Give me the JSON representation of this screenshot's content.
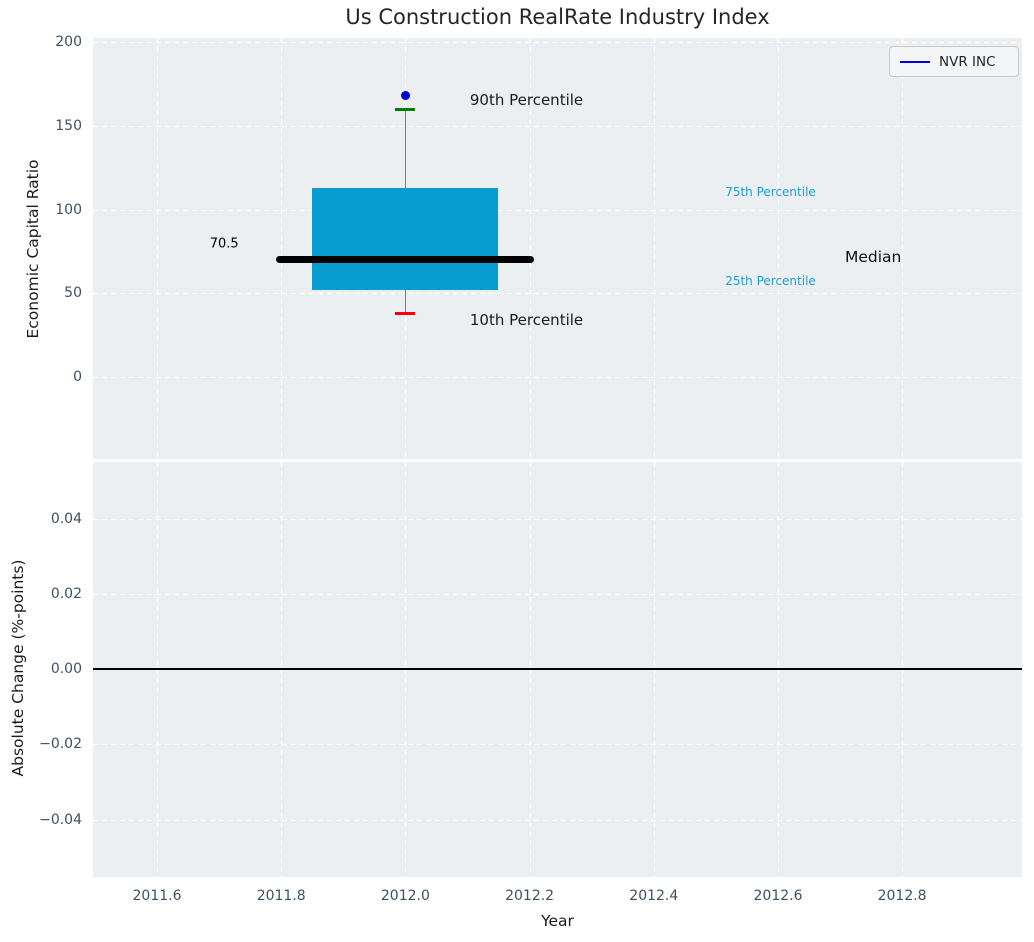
{
  "figure_title": "Us Construction RealRate Industry Index",
  "colors": {
    "plot_bg": "#eceff1",
    "grid": "#ffffff",
    "box_fill": "#089dd1",
    "median": "#000000",
    "whisker": "#7a7a7a",
    "cap_90th": "#008000",
    "cap_10th": "#ff0000",
    "company_point": "#0000dd",
    "tick_label": "#3d5166",
    "annotation_dark": "#1a1a1a",
    "annotation_cyan": "#1d9ecf"
  },
  "chart_data": [
    {
      "type": "boxplot",
      "title": "Us Construction RealRate Industry Index",
      "ylabel": "Economic Capital Ratio",
      "ylim": [
        -48.9,
        202.4
      ],
      "yticks": [
        {
          "label": "0",
          "value": 0
        },
        {
          "label": "50",
          "value": 50
        },
        {
          "label": "100",
          "value": 100
        },
        {
          "label": "150",
          "value": 150
        },
        {
          "label": "200",
          "value": 200
        }
      ],
      "grid": true,
      "legend": {
        "label": "NVR INC",
        "position": "upper right"
      },
      "series": [
        {
          "name": "NVR INC",
          "x": 2012.0,
          "company_value": 168,
          "p10": 38,
          "p25": 52,
          "median": 70.5,
          "p75": 113,
          "p90": 160,
          "box_halfwidth_years": 0.15,
          "median_halfwidth_years": 0.208,
          "median_label": "70.5"
        }
      ],
      "annotations": [
        {
          "text": "90th Percentile",
          "x": 2012.104,
          "y": 165.5,
          "color": "#1a1a1a",
          "size": 15
        },
        {
          "text": "10th Percentile",
          "x": 2012.104,
          "y": 34.0,
          "color": "#1a1a1a",
          "size": 15
        },
        {
          "text": "75th Percentile",
          "x": 2012.515,
          "y": 110.5,
          "color": "#1d9ecf",
          "size": 12
        },
        {
          "text": "25th Percentile",
          "x": 2012.515,
          "y": 57.3,
          "color": "#1d9ecf",
          "size": 12
        },
        {
          "text": "Median",
          "x": 2012.708,
          "y": 71.5,
          "color": "#111111",
          "size": 15.5
        },
        {
          "text": "70.5",
          "x": 2011.685,
          "y": 79.4,
          "color": "#000000",
          "size": 13
        }
      ]
    },
    {
      "type": "line",
      "ylabel": "Absolute Change (%-points)",
      "xlabel": "Year",
      "ylim": [
        -0.0553,
        0.0551
      ],
      "yticks": [
        {
          "label": "−0.04",
          "value": -0.04
        },
        {
          "label": "−0.02",
          "value": -0.02
        },
        {
          "label": "0.00",
          "value": 0.0
        },
        {
          "label": "0.02",
          "value": 0.02
        },
        {
          "label": "0.04",
          "value": 0.04
        }
      ],
      "xlim": [
        2011.497,
        2012.993
      ],
      "xticks": [
        {
          "label": "2011.6",
          "value": 2011.6
        },
        {
          "label": "2011.8",
          "value": 2011.8
        },
        {
          "label": "2012.0",
          "value": 2012.0
        },
        {
          "label": "2012.2",
          "value": 2012.2
        },
        {
          "label": "2012.4",
          "value": 2012.4
        },
        {
          "label": "2012.6",
          "value": 2012.6
        },
        {
          "label": "2012.8",
          "value": 2012.8
        }
      ],
      "zero_line": 0.0,
      "grid": true,
      "series": []
    }
  ]
}
